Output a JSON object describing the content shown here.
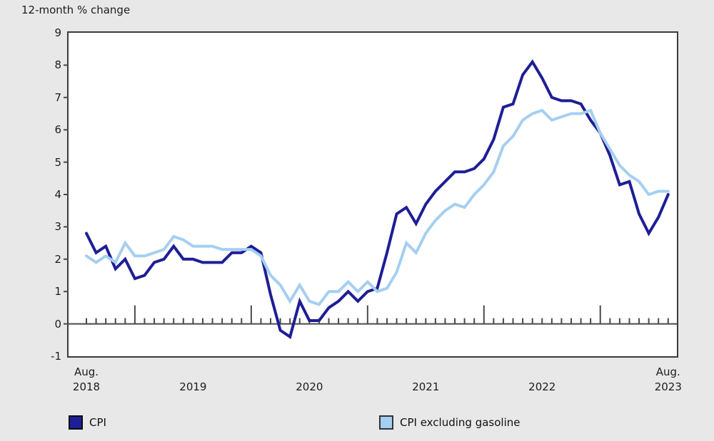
{
  "title": "12-month % change",
  "y_axis": {
    "tick_labels": [
      "9",
      "8",
      "7",
      "6",
      "5",
      "4",
      "3",
      "2",
      "1",
      "0",
      "-1"
    ],
    "min": -1,
    "max": 9
  },
  "x_axis": {
    "labels": [
      {
        "line1": "Aug.",
        "line2": "2018",
        "anchor_index": 0
      },
      {
        "line1": "",
        "line2": "2019",
        "anchor_index": 11
      },
      {
        "line1": "",
        "line2": "2020",
        "anchor_index": 23
      },
      {
        "line1": "",
        "line2": "2021",
        "anchor_index": 35
      },
      {
        "line1": "",
        "line2": "2022",
        "anchor_index": 47
      },
      {
        "line1": "Aug.",
        "line2": "2023",
        "anchor_index": 60
      }
    ]
  },
  "legend": {
    "items": [
      {
        "label": "CPI",
        "swatch_color": "#1e1e96",
        "border_color": "#0a0a0a"
      },
      {
        "label": "CPI excluding gasoline",
        "swatch_color": "#a5cff0",
        "border_color": "#333333"
      }
    ]
  },
  "colors": {
    "background": "#e8e8e8",
    "plot_background": "#ffffff",
    "plot_border": "#3b3b3b",
    "axis_line": "#4a4a4a",
    "text": "#1c1c1c"
  },
  "chart_data": {
    "type": "line",
    "title": "12-month % change",
    "x_unit": "month",
    "x_start": "Aug 2018",
    "x_end": "Aug 2023",
    "points_per_series": 61,
    "ylim": [
      -1,
      9
    ],
    "y_tick_step": 1,
    "grid": false,
    "legend_position": "bottom",
    "x_tick_style": "short tick every month on zero baseline, tall tick each January",
    "series": [
      {
        "name": "CPI",
        "color": "#1e1e96",
        "values": [
          2.8,
          2.2,
          2.4,
          1.7,
          2.0,
          1.4,
          1.5,
          1.9,
          2.0,
          2.4,
          2.0,
          2.0,
          1.9,
          1.9,
          1.9,
          2.2,
          2.2,
          2.4,
          2.2,
          0.9,
          -0.2,
          -0.4,
          0.7,
          0.1,
          0.1,
          0.5,
          0.7,
          1.0,
          0.7,
          1.0,
          1.1,
          2.2,
          3.4,
          3.6,
          3.1,
          3.7,
          4.1,
          4.4,
          4.7,
          4.7,
          4.8,
          5.1,
          5.7,
          6.7,
          6.8,
          7.7,
          8.1,
          7.6,
          7.0,
          6.9,
          6.9,
          6.8,
          6.3,
          5.9,
          5.2,
          4.3,
          4.4,
          3.4,
          2.8,
          3.3,
          4.0
        ]
      },
      {
        "name": "CPI excluding gasoline",
        "color": "#a5cff0",
        "values": [
          2.1,
          1.9,
          2.1,
          1.9,
          2.5,
          2.1,
          2.1,
          2.2,
          2.3,
          2.7,
          2.6,
          2.4,
          2.4,
          2.4,
          2.3,
          2.3,
          2.3,
          2.3,
          2.1,
          1.5,
          1.2,
          0.7,
          1.2,
          0.7,
          0.6,
          1.0,
          1.0,
          1.3,
          1.0,
          1.3,
          1.0,
          1.1,
          1.6,
          2.5,
          2.2,
          2.8,
          3.2,
          3.5,
          3.7,
          3.6,
          4.0,
          4.3,
          4.7,
          5.5,
          5.8,
          6.3,
          6.5,
          6.6,
          6.3,
          6.4,
          6.5,
          6.5,
          6.6,
          5.9,
          5.4,
          4.9,
          4.6,
          4.4,
          4.0,
          4.1,
          4.1
        ]
      }
    ]
  }
}
